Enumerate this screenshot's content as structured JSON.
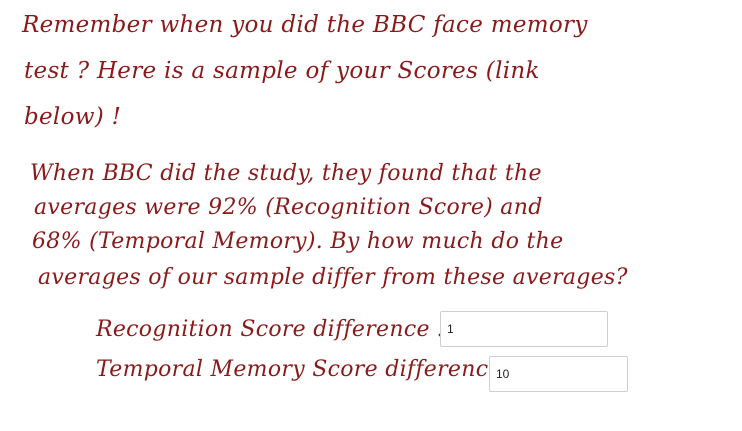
{
  "intro": {
    "line1": "Remember when you did the BBC face memory",
    "line2": "test ? Here is a sample of your Scores (link",
    "line3": "below) !"
  },
  "question": {
    "line1": "When BBC did the study, they found that the",
    "line2": "averages were 92% (Recognition Score) and",
    "line3": "68% (Temporal Memory). By how much do the",
    "line4": "averages of our sample differ from these averages?"
  },
  "answers": {
    "recognition_label": "Recognition Score difference :",
    "recognition_value": "1",
    "temporal_label": "Temporal Memory Score difference :",
    "temporal_value": "10"
  },
  "colors": {
    "handwriting": "#8a1a1a",
    "input_border": "#cfcfcf"
  }
}
